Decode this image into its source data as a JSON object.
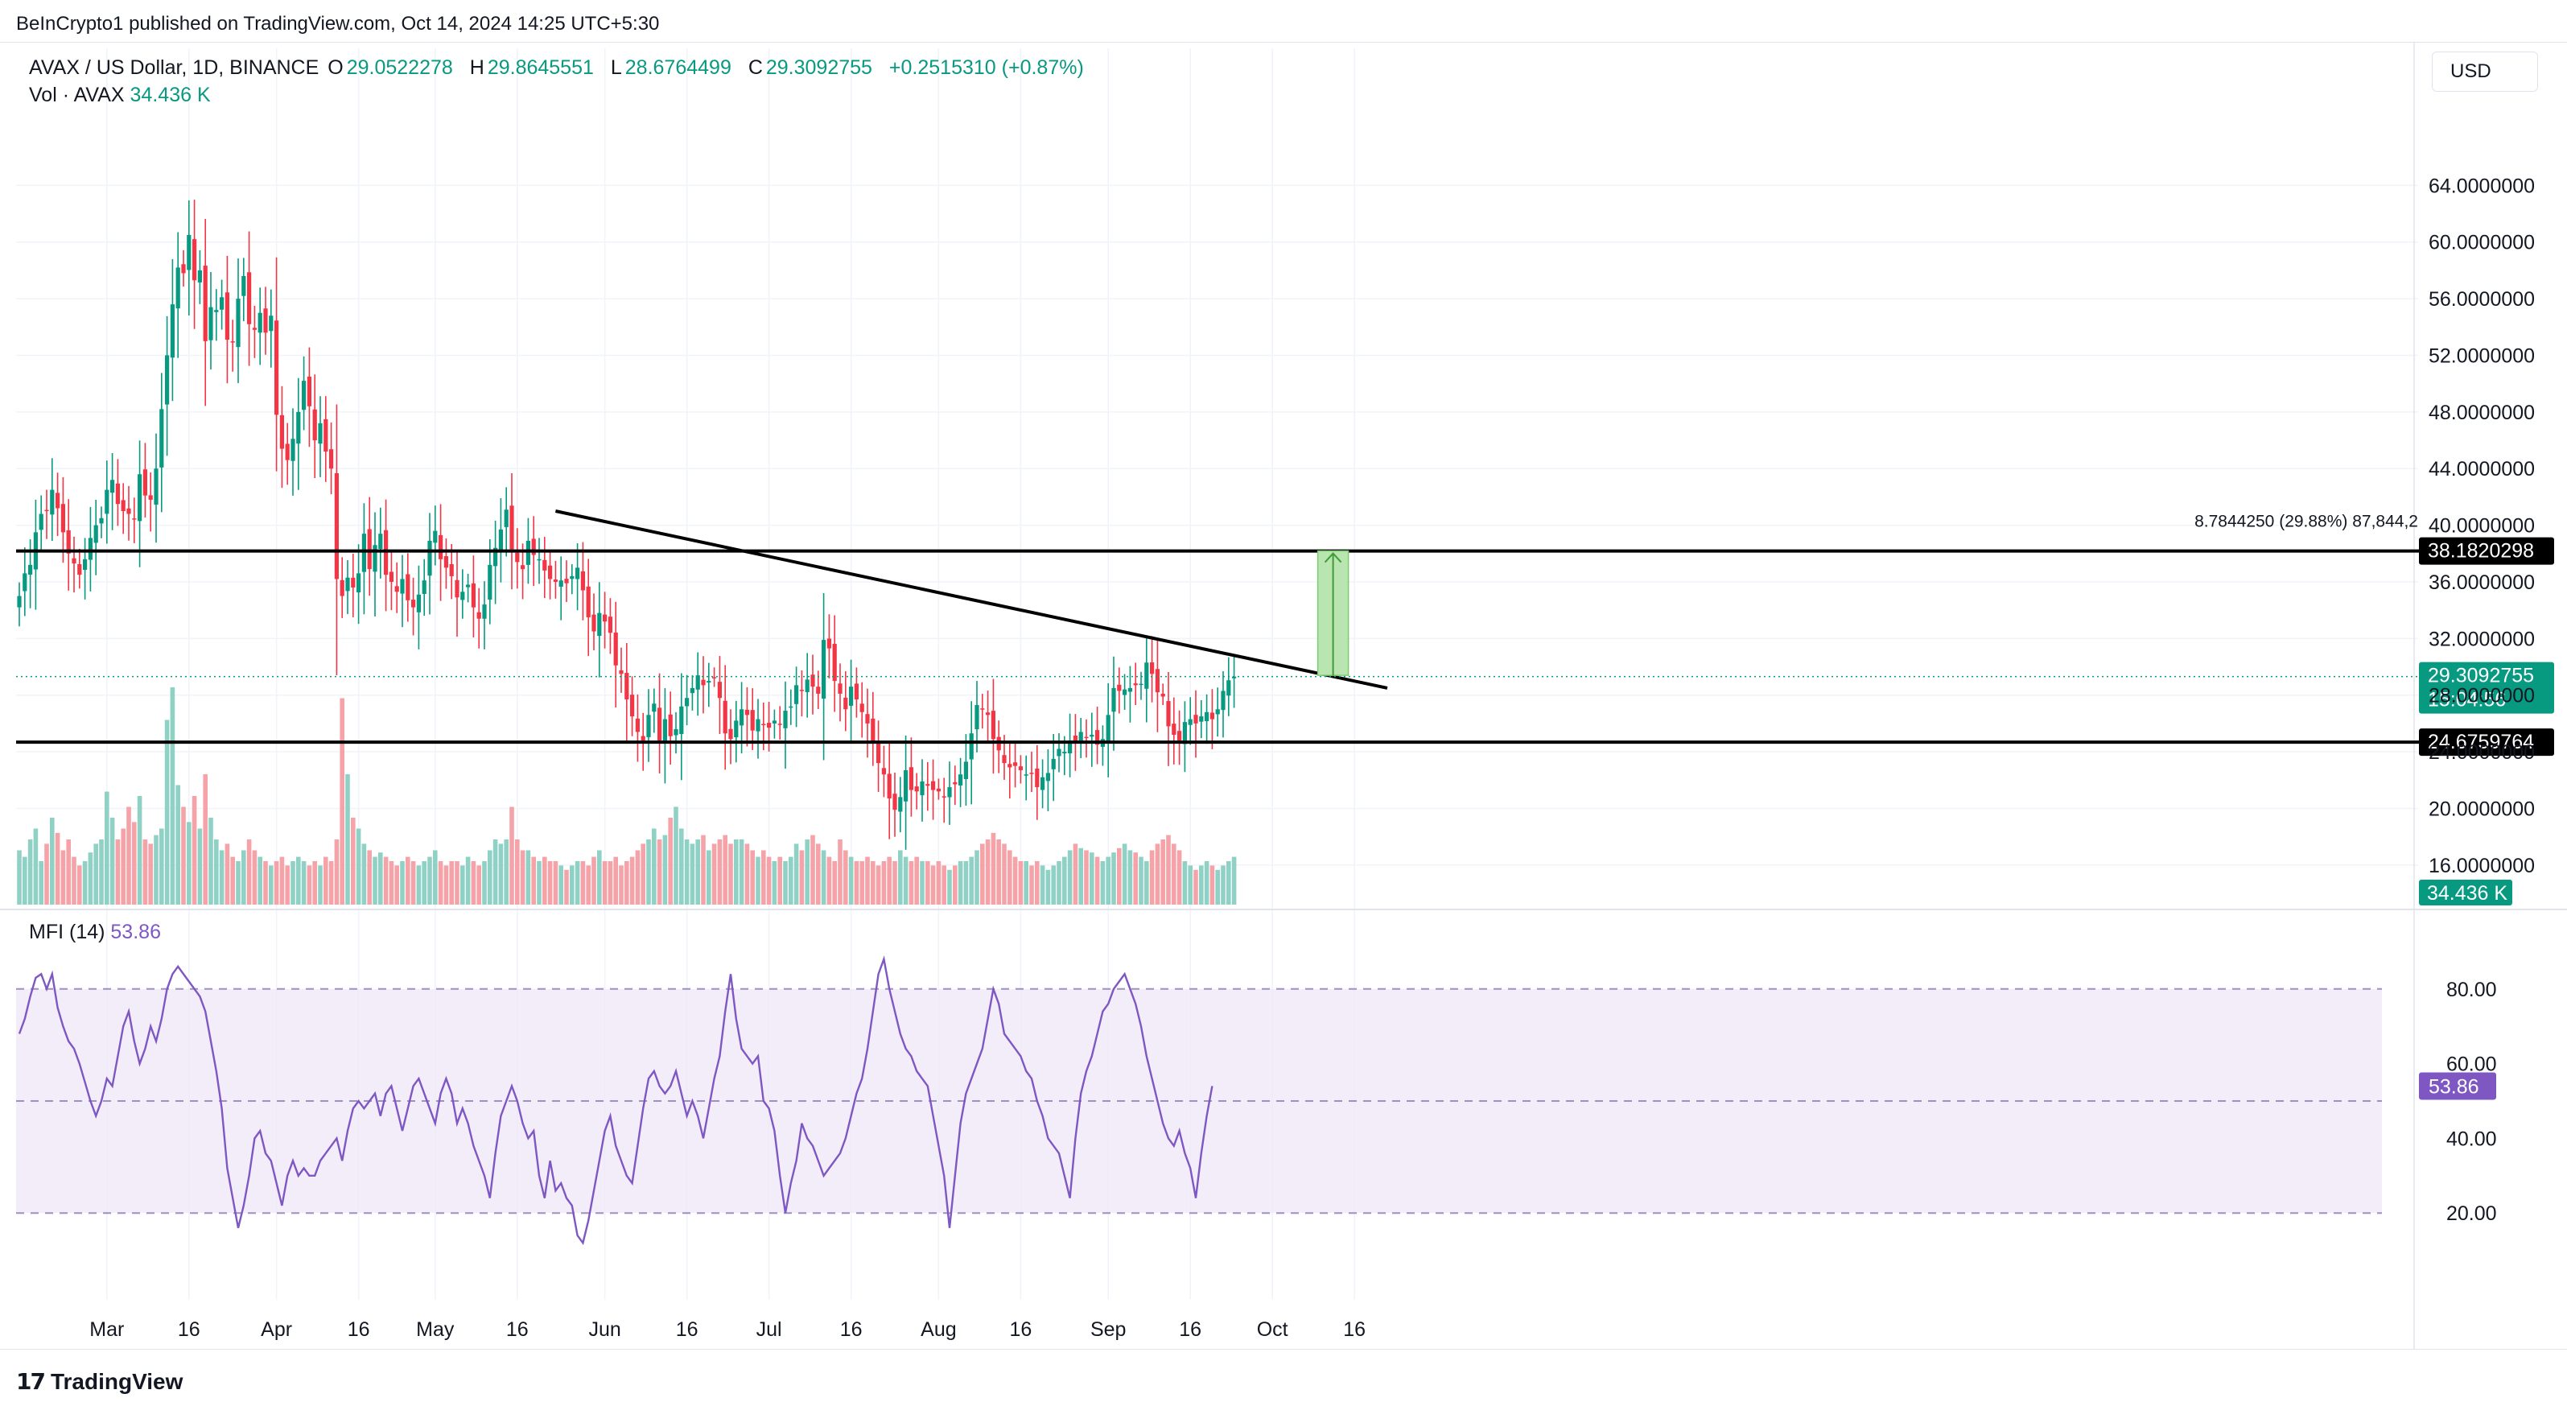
{
  "header": {
    "publisher_line": "BeInCrypto1 published on TradingView.com, Oct 14, 2024 14:25 UTC+5:30"
  },
  "legend": {
    "symbol": "AVAX / US Dollar, 1D, BINANCE",
    "open_label": "O",
    "open": "29.0522278",
    "high_label": "H",
    "high": "29.8645551",
    "low_label": "L",
    "low": "28.6764499",
    "close_label": "C",
    "close": "29.3092755",
    "change": "+0.2515310 (+0.87%)",
    "vol_label": "Vol · AVAX",
    "vol_value": "34.436 K"
  },
  "currency": "USD",
  "mfi": {
    "label": "MFI (14)",
    "value": "53.86"
  },
  "brand": {
    "name": "TradingView"
  },
  "colors": {
    "up": "#089981",
    "down": "#f23645",
    "up_vol": "#8fd2c5",
    "down_vol": "#f5a3a8",
    "mfi": "#7e57c2",
    "mfi_band": "#ede7f6"
  },
  "chart_data": [
    {
      "type": "candlestick",
      "ylim": [
        14,
        68
      ],
      "y_ticks": [
        "64.0000000",
        "60.0000000",
        "56.0000000",
        "52.0000000",
        "48.0000000",
        "44.0000000",
        "40.0000000",
        "36.0000000",
        "32.0000000",
        "28.0000000",
        "24.0000000",
        "20.0000000",
        "16.0000000"
      ],
      "y_tick_values": [
        64,
        60,
        56,
        52,
        48,
        44,
        40,
        36,
        32,
        28,
        24,
        20,
        16
      ],
      "x_ticks": [
        "Mar",
        "16",
        "Apr",
        "16",
        "May",
        "16",
        "Jun",
        "16",
        "Jul",
        "16",
        "Aug",
        "16",
        "Sep",
        "16",
        "Oct",
        "16"
      ],
      "x_tick_day_index": [
        16,
        31,
        47,
        62,
        76,
        91,
        107,
        122,
        137,
        152,
        168,
        183,
        199,
        214,
        229,
        244
      ],
      "start_date": "2024-02-14",
      "close_path": [
        35.0,
        36.6,
        37.2,
        39.5,
        40.8,
        41.0,
        42.5,
        41.2,
        39.5,
        38.0,
        37.3,
        36.5,
        37.6,
        39.1,
        40.0,
        40.5,
        42.5,
        43.2,
        41.5,
        41.0,
        40.8,
        40.4,
        43.6,
        42.1,
        41.8,
        44.0,
        48.2,
        52.0,
        55.6,
        58.2,
        57.8,
        60.5,
        57.3,
        58.0,
        53.0,
        55.4,
        55.2,
        56.1,
        53.1,
        52.9,
        56.0,
        57.6,
        54.2,
        53.8,
        55.0,
        53.6,
        54.8,
        47.8,
        45.4,
        44.6,
        46.1,
        48.0,
        50.2,
        48.4,
        46.0,
        47.2,
        45.2,
        44.0,
        36.2,
        35.0,
        36.3,
        35.6,
        36.6,
        39.4,
        36.9,
        38.6,
        39.4,
        36.5,
        36.0,
        35.3,
        36.2,
        34.7,
        34.2,
        35.1,
        36.1,
        38.9,
        39.6,
        37.6,
        37.0,
        36.4,
        34.9,
        35.3,
        35.8,
        34.2,
        33.4,
        34.4,
        37.2,
        38.4,
        39.7,
        41.1,
        38.3,
        37.4,
        36.9,
        38.9,
        37.9,
        37.6,
        36.8,
        36.2,
        36.0,
        36.1,
        35.9,
        36.4,
        37.0,
        35.4,
        33.5,
        32.5,
        33.8,
        33.2,
        32.4,
        30.1,
        29.5,
        27.7,
        26.5,
        25.4,
        24.8,
        26.6,
        27.4,
        24.8,
        26.3,
        25.1,
        25.6,
        27.2,
        27.8,
        28.5,
        29.4,
        28.7,
        29.0,
        29.2,
        27.8,
        25.3,
        24.9,
        26.2,
        27.0,
        26.6,
        25.5,
        26.3,
        25.9,
        25.7,
        26.2,
        25.9,
        26.9,
        27.2,
        28.7,
        28.3,
        29.1,
        28.6,
        28.1,
        31.9,
        31.3,
        29.0,
        28.1,
        27.0,
        28.6,
        27.7,
        26.8,
        26.0,
        24.7,
        23.2,
        22.4,
        20.7,
        19.9,
        20.8,
        22.7,
        21.3,
        21.2,
        21.9,
        21.6,
        21.3,
        21.2,
        20.8,
        21.5,
        21.7,
        22.4,
        23.3,
        25.3,
        27.3,
        27.0,
        26.6,
        24.9,
        24.1,
        23.2,
        22.9,
        23.0,
        22.7,
        22.4,
        22.5,
        21.5,
        22.2,
        22.5,
        23.5,
        24.2,
        24.0,
        24.8,
        24.7,
        25.4,
        25.0,
        25.2,
        24.5,
        24.9,
        26.6,
        28.5,
        28.3,
        28.4,
        28.5,
        28.7,
        28.8,
        30.3,
        29.5,
        28.2,
        27.9,
        25.8,
        25.2,
        24.8,
        26.1,
        26.3,
        26.0,
        26.5,
        26.8,
        26.3,
        27.0,
        28.3,
        29.05,
        29.31
      ],
      "annotations": {
        "resistance": {
          "label": "38.1820298",
          "value": 38.1820298
        },
        "support": {
          "label": "24.6759764",
          "value": 24.6759764
        },
        "last_price": {
          "label": "29.3092755",
          "countdown": "15:04:56",
          "value": 29.3092755
        },
        "measure": {
          "label": "8.7844250 (29.88%) 87,844,2",
          "from": 29.3976048,
          "to": 38.1820298
        },
        "trendline": {
          "from_day": 98,
          "from_value": 41.0,
          "to_day": 250,
          "to_value": 28.5
        }
      }
    },
    {
      "type": "bar",
      "name": "Vol · AVAX",
      "last_label": "34.436 K",
      "volume_pattern": [
        0.25,
        0.22,
        0.3,
        0.35,
        0.2,
        0.28,
        0.4,
        0.33,
        0.25,
        0.3,
        0.22,
        0.18,
        0.2,
        0.24,
        0.28,
        0.3,
        0.52,
        0.4,
        0.3,
        0.35,
        0.45,
        0.38,
        0.5,
        0.3,
        0.28,
        0.32,
        0.35,
        0.85,
        1.0,
        0.55,
        0.45,
        0.38,
        0.5,
        0.35,
        0.6,
        0.4,
        0.3,
        0.25,
        0.28,
        0.22,
        0.2,
        0.25,
        0.3,
        0.25,
        0.22,
        0.2,
        0.18,
        0.2,
        0.22,
        0.18,
        0.2,
        0.22,
        0.2,
        0.18,
        0.2,
        0.18,
        0.22,
        0.2,
        0.3,
        0.95,
        0.6,
        0.4,
        0.35,
        0.28,
        0.25,
        0.22,
        0.24,
        0.22,
        0.2,
        0.18,
        0.2,
        0.22,
        0.2,
        0.18,
        0.2,
        0.22,
        0.25,
        0.2,
        0.18,
        0.2,
        0.2,
        0.18,
        0.22,
        0.2,
        0.18,
        0.2,
        0.25,
        0.3,
        0.28,
        0.3,
        0.45,
        0.3,
        0.25,
        0.25,
        0.22,
        0.2,
        0.22,
        0.2,
        0.2,
        0.18,
        0.16,
        0.18,
        0.2,
        0.2,
        0.18,
        0.22,
        0.25,
        0.2,
        0.2,
        0.22,
        0.18,
        0.2,
        0.22,
        0.25,
        0.28,
        0.3,
        0.35,
        0.3,
        0.32,
        0.4,
        0.45,
        0.35,
        0.3,
        0.28,
        0.3,
        0.32,
        0.25,
        0.28,
        0.3,
        0.32,
        0.28,
        0.3,
        0.3,
        0.28,
        0.25,
        0.22,
        0.25,
        0.22,
        0.2,
        0.22,
        0.2,
        0.22,
        0.28,
        0.25,
        0.3,
        0.32,
        0.28,
        0.25,
        0.22,
        0.2,
        0.3,
        0.25,
        0.22,
        0.2,
        0.2,
        0.22,
        0.2,
        0.18,
        0.2,
        0.22,
        0.2,
        0.25,
        0.22,
        0.2,
        0.22,
        0.2,
        0.2,
        0.18,
        0.2,
        0.18,
        0.16,
        0.18,
        0.2,
        0.2,
        0.22,
        0.25,
        0.28,
        0.3,
        0.33,
        0.3,
        0.28,
        0.25,
        0.22,
        0.2,
        0.2,
        0.18,
        0.2,
        0.18,
        0.16,
        0.18,
        0.2,
        0.22,
        0.25,
        0.28,
        0.26,
        0.25,
        0.24,
        0.22,
        0.2,
        0.22,
        0.24,
        0.26,
        0.28,
        0.25,
        0.24,
        0.22,
        0.2,
        0.25,
        0.28,
        0.3,
        0.32,
        0.28,
        0.25,
        0.2,
        0.18,
        0.16,
        0.18,
        0.2,
        0.18,
        0.16,
        0.18,
        0.2,
        0.22,
        0.25,
        0.28,
        0.17
      ]
    },
    {
      "type": "line",
      "name": "MFI (14)",
      "ylim": [
        0,
        100
      ],
      "y_ticks": [
        "80.00",
        "60.00",
        "40.00",
        "20.00"
      ],
      "y_tick_values": [
        80,
        60,
        40,
        20
      ],
      "bands": [
        20,
        50,
        80
      ],
      "values": [
        68,
        72,
        78,
        83,
        84,
        80,
        84,
        75,
        70,
        66,
        64,
        60,
        55,
        50,
        46,
        50,
        56,
        54,
        62,
        70,
        74,
        66,
        60,
        64,
        70,
        66,
        72,
        80,
        84,
        86,
        84,
        82,
        80,
        78,
        74,
        66,
        58,
        48,
        32,
        24,
        16,
        22,
        30,
        40,
        42,
        36,
        34,
        28,
        22,
        30,
        34,
        30,
        32,
        30,
        30,
        34,
        36,
        38,
        40,
        34,
        42,
        48,
        50,
        48,
        50,
        52,
        46,
        52,
        54,
        48,
        42,
        48,
        54,
        56,
        52,
        48,
        44,
        52,
        56,
        52,
        44,
        48,
        44,
        38,
        34,
        30,
        24,
        36,
        46,
        50,
        54,
        50,
        44,
        40,
        42,
        30,
        24,
        34,
        26,
        28,
        24,
        22,
        14,
        12,
        18,
        26,
        34,
        42,
        46,
        38,
        34,
        30,
        28,
        38,
        48,
        56,
        58,
        54,
        52,
        54,
        58,
        52,
        46,
        50,
        46,
        40,
        48,
        56,
        62,
        74,
        84,
        72,
        64,
        62,
        60,
        62,
        50,
        48,
        42,
        30,
        20,
        28,
        34,
        44,
        40,
        38,
        34,
        30,
        32,
        34,
        36,
        40,
        46,
        52,
        56,
        64,
        74,
        84,
        88,
        80,
        74,
        68,
        64,
        62,
        58,
        56,
        54,
        46,
        38,
        30,
        16,
        30,
        44,
        52,
        56,
        60,
        64,
        72,
        80,
        76,
        68,
        66,
        64,
        62,
        58,
        56,
        50,
        46,
        40,
        38,
        36,
        30,
        24,
        40,
        52,
        58,
        62,
        68,
        74,
        76,
        80,
        82,
        84,
        80,
        76,
        70,
        62,
        56,
        50,
        44,
        40,
        38,
        42,
        36,
        32,
        24,
        36,
        46,
        54
      ]
    }
  ]
}
